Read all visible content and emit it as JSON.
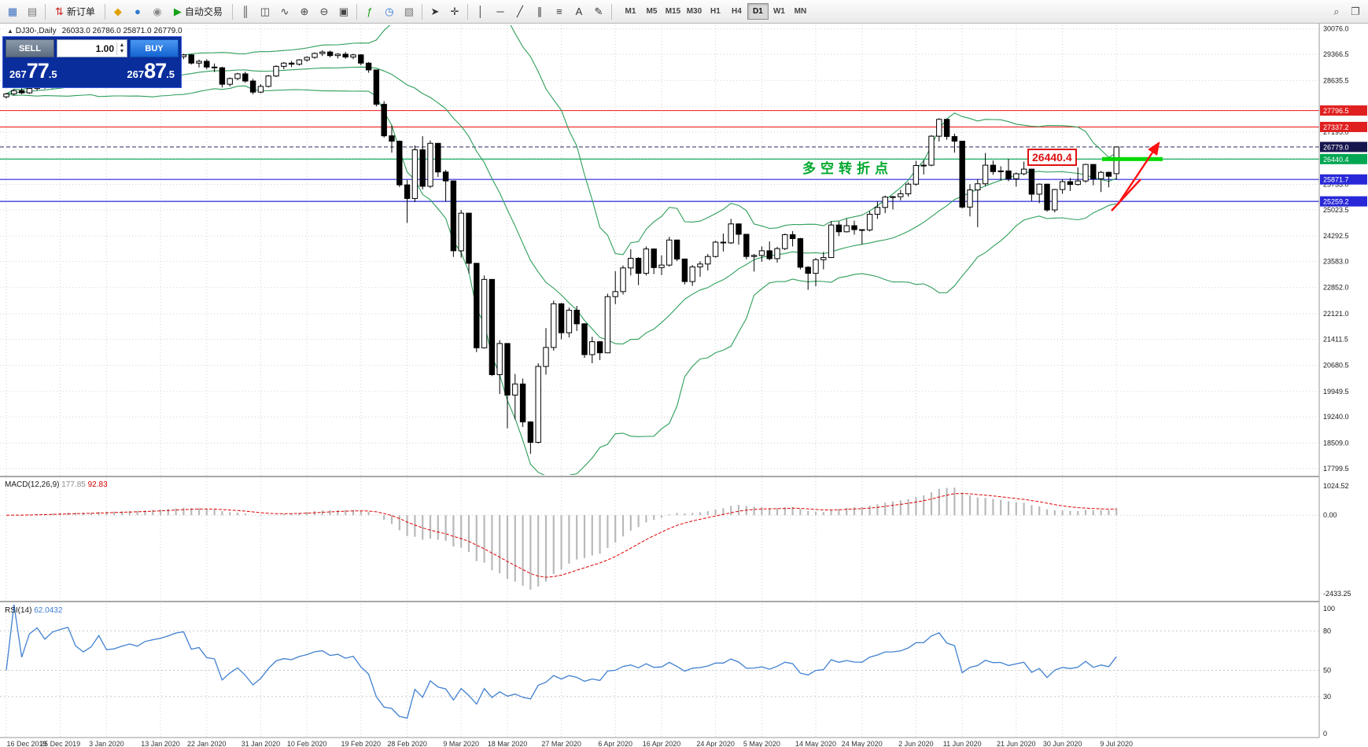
{
  "toolbar": {
    "items": [
      {
        "name": "new-chart-button",
        "glyph": "▦",
        "color": "#3a6ec0"
      },
      {
        "name": "chart-profiles-button",
        "glyph": "▤",
        "color": "#777777"
      },
      {
        "type": "sep"
      },
      {
        "name": "new-order-button",
        "glyph": "⇅",
        "color": "#cc2020",
        "label": "新订单"
      },
      {
        "type": "sep"
      },
      {
        "name": "market-button",
        "glyph": "◆",
        "color": "#e0a000"
      },
      {
        "name": "community-button",
        "glyph": "●",
        "color": "#2a7ad2"
      },
      {
        "name": "signals-button",
        "glyph": "◉",
        "color": "#888888"
      },
      {
        "name": "autotrading-button",
        "glyph": "▶",
        "color": "#18a018",
        "label": "自动交易"
      },
      {
        "type": "sep"
      },
      {
        "name": "bar-chart-button",
        "glyph": "║",
        "color": "#444444"
      },
      {
        "name": "candlestick-chart-button",
        "glyph": "◫",
        "color": "#444444"
      },
      {
        "name": "line-chart-button",
        "glyph": "∿",
        "color": "#444444"
      },
      {
        "name": "zoom-in-button",
        "glyph": "⊕",
        "color": "#444444"
      },
      {
        "name": "zoom-out-button",
        "glyph": "⊖",
        "color": "#444444"
      },
      {
        "name": "tile-windows-button",
        "glyph": "▣",
        "color": "#444444"
      },
      {
        "type": "sep"
      },
      {
        "name": "indicators-button",
        "glyph": "ƒ",
        "color": "#18a018"
      },
      {
        "name": "periods-dropdown-button",
        "glyph": "◷",
        "color": "#2a7ad2"
      },
      {
        "name": "templates-button",
        "glyph": "▧",
        "color": "#777777"
      },
      {
        "type": "sep"
      },
      {
        "name": "cursor-button",
        "glyph": "➤",
        "color": "#333333"
      },
      {
        "name": "crosshair-button",
        "glyph": "✛",
        "color": "#333333"
      },
      {
        "type": "sep"
      },
      {
        "name": "vertical-line-button",
        "glyph": "│",
        "color": "#333333"
      },
      {
        "name": "horizontal-line-button",
        "glyph": "─",
        "color": "#333333"
      },
      {
        "name": "trendline-button",
        "glyph": "╱",
        "color": "#333333"
      },
      {
        "name": "channel-button",
        "glyph": "∥",
        "color": "#333333"
      },
      {
        "name": "fibonacci-button",
        "glyph": "≡",
        "color": "#333333"
      },
      {
        "name": "text-button",
        "glyph": "A",
        "color": "#333333"
      },
      {
        "name": "arrows-button",
        "glyph": "✎",
        "color": "#333333"
      },
      {
        "type": "sep"
      }
    ],
    "timeframes": [
      "M1",
      "M5",
      "M15",
      "M30",
      "H1",
      "H4",
      "D1",
      "W1",
      "MN"
    ],
    "active_timeframe": "D1",
    "right_items": [
      {
        "name": "search-button",
        "glyph": "⌕",
        "color": "#555555"
      },
      {
        "name": "new-window-button",
        "glyph": "❐",
        "color": "#555555"
      }
    ]
  },
  "chart": {
    "title_symbol": "DJ30-,Daily",
    "ohlc_display": "26033.0 26786.0 25871.0 26779.0"
  },
  "trade_panel": {
    "sell_label": "SELL",
    "buy_label": "BUY",
    "volume": "1.00",
    "sell_price": "26777.5",
    "buy_price": "26787.5"
  },
  "annotations": {
    "turning_point_label": "多空转折点",
    "price_box_label": "26440.4"
  },
  "macd": {
    "name": "MACD(12,26,9)",
    "value_main": "177.85",
    "value_signal": "92.83"
  },
  "rsi": {
    "name": "RSI(14)",
    "value": "62.0432"
  },
  "colors": {
    "resistance_line": "#f03030",
    "support_line": "#2828d8",
    "pivot_line": "#00a651",
    "current_badge": "#16164e",
    "highlight_segment": "#00d800",
    "arrow": "#ff1010",
    "bollinger": "#2e9e5b",
    "macd_hist": "#b9b9b9",
    "macd_signal": "#e00000",
    "rsi_line": "#4080d0",
    "candle_up": "#ffffff",
    "candle_down": "#000000",
    "grid": "#d2d2d2"
  },
  "chart_data": {
    "type": "candlestick",
    "symbol": "DJ30-",
    "period": "Daily",
    "x_tick_labels": [
      "16 Dec 2019",
      "25 Dec 2019",
      "3 Jan 2020",
      "13 Jan 2020",
      "22 Jan 2020",
      "31 Jan 2020",
      "10 Feb 2020",
      "19 Feb 2020",
      "28 Feb 2020",
      "9 Mar 2020",
      "18 Mar 2020",
      "27 Mar 2020",
      "6 Apr 2020",
      "16 Apr 2020",
      "24 Apr 2020",
      "5 May 2020",
      "14 May 2020",
      "24 May 2020",
      "2 Jun 2020",
      "11 Jun 2020",
      "21 Jun 2020",
      "30 Jun 2020",
      "9 Jul 2020"
    ],
    "y_tick_labels": [
      30076.0,
      29366.5,
      28635.5,
      27195.0,
      25733.0,
      25023.5,
      24292.5,
      23583.0,
      22852.0,
      22121.0,
      21411.5,
      20680.5,
      19949.5,
      19240.0,
      18509.0,
      17799.5
    ],
    "price_range": [
      17620,
      30180
    ],
    "horizontal_lines": [
      {
        "price": 27796.5,
        "color": "#f03030",
        "style": "solid",
        "badge_color": "#e02020"
      },
      {
        "price": 27337.2,
        "color": "#f03030",
        "style": "solid",
        "badge_color": "#e02020"
      },
      {
        "price": 26779.0,
        "color": "#55557d",
        "style": "dashed",
        "badge_color": "#16164e"
      },
      {
        "price": 26440.4,
        "color": "#00a651",
        "style": "solid",
        "badge_color": "#00a651"
      },
      {
        "price": 25871.7,
        "color": "#2828d8",
        "style": "solid",
        "badge_color": "#2828d8"
      },
      {
        "price": 25259.2,
        "color": "#2828d8",
        "style": "solid",
        "badge_color": "#2828d8"
      }
    ],
    "indicators": {
      "bollinger_bands": {
        "period": 20,
        "deviation": 2
      },
      "macd": {
        "fast": 12,
        "slow": 26,
        "signal": 9,
        "current_main": 177.85,
        "current_signal": 92.83,
        "y_range": [
          -2600,
          1100
        ],
        "y_tick_labels": [
          "1024.52",
          "0.00",
          "-2433.25"
        ],
        "y_tick_values": [
          1024.52,
          0,
          -2433.25
        ]
      },
      "rsi": {
        "period": 14,
        "current": 62.0432,
        "levels": [
          80,
          50,
          30
        ],
        "y_tick_labels": [
          "100",
          "80",
          "50",
          "30",
          "0"
        ],
        "y_tick_values": [
          100,
          80,
          50,
          30,
          0
        ]
      }
    },
    "ohlc": [
      [
        28180,
        28290,
        28130,
        28260
      ],
      [
        28260,
        28390,
        28220,
        28350
      ],
      [
        28350,
        28420,
        28250,
        28290
      ],
      [
        28290,
        28440,
        28260,
        28410
      ],
      [
        28410,
        28510,
        28350,
        28480
      ],
      [
        28480,
        28550,
        28400,
        28440
      ],
      [
        28440,
        28560,
        28410,
        28540
      ],
      [
        28540,
        28620,
        28480,
        28590
      ],
      [
        28590,
        28680,
        28530,
        28640
      ],
      [
        28640,
        28700,
        28480,
        28520
      ],
      [
        28520,
        28590,
        28420,
        28470
      ],
      [
        28470,
        28580,
        28430,
        28560
      ],
      [
        28560,
        28890,
        28540,
        28870
      ],
      [
        28870,
        28920,
        28620,
        28680
      ],
      [
        28680,
        28740,
        28450,
        28710
      ],
      [
        28710,
        28820,
        28560,
        28790
      ],
      [
        28790,
        28880,
        28700,
        28860
      ],
      [
        28860,
        28920,
        28780,
        28830
      ],
      [
        28830,
        29010,
        28800,
        28980
      ],
      [
        28980,
        29080,
        28900,
        29040
      ],
      [
        29040,
        29120,
        28960,
        29090
      ],
      [
        29090,
        29200,
        29030,
        29180
      ],
      [
        29180,
        29320,
        29120,
        29300
      ],
      [
        29300,
        29380,
        29230,
        29350
      ],
      [
        29350,
        29370,
        29080,
        29120
      ],
      [
        29120,
        29220,
        29000,
        29170
      ],
      [
        29170,
        29230,
        28950,
        29010
      ],
      [
        29010,
        29110,
        28870,
        28990
      ],
      [
        28990,
        29020,
        28440,
        28530
      ],
      [
        28530,
        28720,
        28470,
        28690
      ],
      [
        28690,
        28850,
        28640,
        28820
      ],
      [
        28820,
        28880,
        28570,
        28620
      ],
      [
        28620,
        28680,
        28250,
        28310
      ],
      [
        28310,
        28530,
        28280,
        28470
      ],
      [
        28470,
        28790,
        28440,
        28760
      ],
      [
        28760,
        29060,
        28730,
        29030
      ],
      [
        29030,
        29150,
        28950,
        29120
      ],
      [
        29120,
        29180,
        29010,
        29090
      ],
      [
        29090,
        29230,
        29050,
        29210
      ],
      [
        29210,
        29310,
        29160,
        29280
      ],
      [
        29280,
        29420,
        29240,
        29390
      ],
      [
        29390,
        29480,
        29320,
        29430
      ],
      [
        29430,
        29470,
        29280,
        29330
      ],
      [
        29330,
        29400,
        29250,
        29370
      ],
      [
        29370,
        29430,
        29240,
        29290
      ],
      [
        29290,
        29380,
        29230,
        29350
      ],
      [
        29350,
        29370,
        29060,
        29120
      ],
      [
        29120,
        29150,
        28850,
        28930
      ],
      [
        28930,
        28940,
        27910,
        27970
      ],
      [
        27970,
        28060,
        27040,
        27090
      ],
      [
        27090,
        27380,
        26620,
        26940
      ],
      [
        26940,
        26960,
        25660,
        25720
      ],
      [
        25720,
        25860,
        24660,
        25340
      ],
      [
        25340,
        26820,
        25240,
        26700
      ],
      [
        26700,
        27080,
        25590,
        25680
      ],
      [
        25680,
        26960,
        25630,
        26880
      ],
      [
        26880,
        26890,
        25940,
        26080
      ],
      [
        26080,
        26140,
        25250,
        25830
      ],
      [
        25830,
        25840,
        23710,
        23880
      ],
      [
        23880,
        25020,
        23690,
        24930
      ],
      [
        24930,
        24940,
        23250,
        23530
      ],
      [
        23530,
        23540,
        21050,
        21170
      ],
      [
        21170,
        23190,
        21150,
        23080
      ],
      [
        23080,
        23090,
        20380,
        20420
      ],
      [
        20420,
        21380,
        19880,
        21290
      ],
      [
        21290,
        21300,
        18920,
        19850
      ],
      [
        19850,
        20440,
        19170,
        20160
      ],
      [
        20160,
        20310,
        18960,
        19100
      ],
      [
        19100,
        19120,
        18210,
        18530
      ],
      [
        18530,
        20740,
        18500,
        20650
      ],
      [
        20650,
        21720,
        20420,
        21180
      ],
      [
        21180,
        22490,
        21090,
        22400
      ],
      [
        22400,
        22420,
        21410,
        21590
      ],
      [
        21590,
        22290,
        21460,
        22220
      ],
      [
        22220,
        22340,
        21640,
        21840
      ],
      [
        21840,
        21860,
        20890,
        20980
      ],
      [
        20980,
        21480,
        20740,
        21340
      ],
      [
        21340,
        21360,
        20830,
        21030
      ],
      [
        21030,
        22680,
        21020,
        22600
      ],
      [
        22600,
        23310,
        22390,
        22740
      ],
      [
        22740,
        23470,
        22660,
        23400
      ],
      [
        23400,
        23920,
        23190,
        23670
      ],
      [
        23670,
        23700,
        22920,
        23250
      ],
      [
        23250,
        24000,
        23190,
        23930
      ],
      [
        23930,
        23940,
        23230,
        23410
      ],
      [
        23410,
        23750,
        23200,
        23480
      ],
      [
        23480,
        24270,
        23440,
        24180
      ],
      [
        24180,
        24190,
        23590,
        23650
      ],
      [
        23650,
        23660,
        22940,
        23020
      ],
      [
        23020,
        23480,
        22900,
        23430
      ],
      [
        23430,
        23590,
        23150,
        23510
      ],
      [
        23510,
        23790,
        23330,
        23720
      ],
      [
        23720,
        24160,
        23690,
        24120
      ],
      [
        24120,
        24360,
        23860,
        24100
      ],
      [
        24100,
        24770,
        24070,
        24630
      ],
      [
        24630,
        24640,
        24050,
        24340
      ],
      [
        24340,
        24350,
        23640,
        23720
      ],
      [
        23720,
        23790,
        23300,
        23750
      ],
      [
        23750,
        24000,
        23570,
        23880
      ],
      [
        23880,
        24140,
        23610,
        23660
      ],
      [
        23660,
        23990,
        23550,
        23940
      ],
      [
        23940,
        24360,
        23900,
        24330
      ],
      [
        24330,
        24430,
        24000,
        24220
      ],
      [
        24220,
        24240,
        23360,
        23420
      ],
      [
        23420,
        23450,
        22790,
        23250
      ],
      [
        23250,
        23680,
        22890,
        23630
      ],
      [
        23630,
        23850,
        23360,
        23690
      ],
      [
        23690,
        24710,
        23680,
        24600
      ],
      [
        24600,
        24700,
        24290,
        24410
      ],
      [
        24410,
        24770,
        24390,
        24580
      ],
      [
        24580,
        24720,
        24330,
        24470
      ],
      [
        24470,
        24480,
        24060,
        24460
      ],
      [
        24460,
        24990,
        24420,
        24900
      ],
      [
        24900,
        25260,
        24770,
        25090
      ],
      [
        25090,
        25420,
        24930,
        25380
      ],
      [
        25380,
        25410,
        25030,
        25390
      ],
      [
        25390,
        25580,
        25290,
        25470
      ],
      [
        25470,
        25790,
        25390,
        25740
      ],
      [
        25740,
        26390,
        25700,
        26260
      ],
      [
        26260,
        26420,
        26010,
        26270
      ],
      [
        26270,
        27110,
        26240,
        27080
      ],
      [
        27080,
        27580,
        26930,
        27550
      ],
      [
        27550,
        27560,
        26980,
        27070
      ],
      [
        27070,
        27150,
        26620,
        26940
      ],
      [
        26940,
        26950,
        25060,
        25100
      ],
      [
        25100,
        25740,
        24840,
        25580
      ],
      [
        25580,
        25880,
        24540,
        25750
      ],
      [
        25750,
        26610,
        25690,
        26270
      ],
      [
        26270,
        26400,
        26000,
        26090
      ],
      [
        26090,
        26240,
        25850,
        26110
      ],
      [
        26110,
        26450,
        25820,
        25890
      ],
      [
        25890,
        26070,
        25670,
        26030
      ],
      [
        26030,
        26370,
        25990,
        26160
      ],
      [
        26160,
        26170,
        25270,
        25460
      ],
      [
        25460,
        25760,
        25210,
        25740
      ],
      [
        25740,
        25750,
        24970,
        25020
      ],
      [
        25020,
        25610,
        24950,
        25590
      ],
      [
        25590,
        25880,
        25470,
        25810
      ],
      [
        25810,
        25910,
        25550,
        25730
      ],
      [
        25730,
        26210,
        25700,
        25830
      ],
      [
        25830,
        26310,
        25780,
        26290
      ],
      [
        26290,
        26300,
        25710,
        25890
      ],
      [
        25890,
        26110,
        25520,
        26070
      ],
      [
        26070,
        26090,
        25650,
        25960
      ],
      [
        26033,
        26786,
        25871,
        26779
      ]
    ]
  }
}
